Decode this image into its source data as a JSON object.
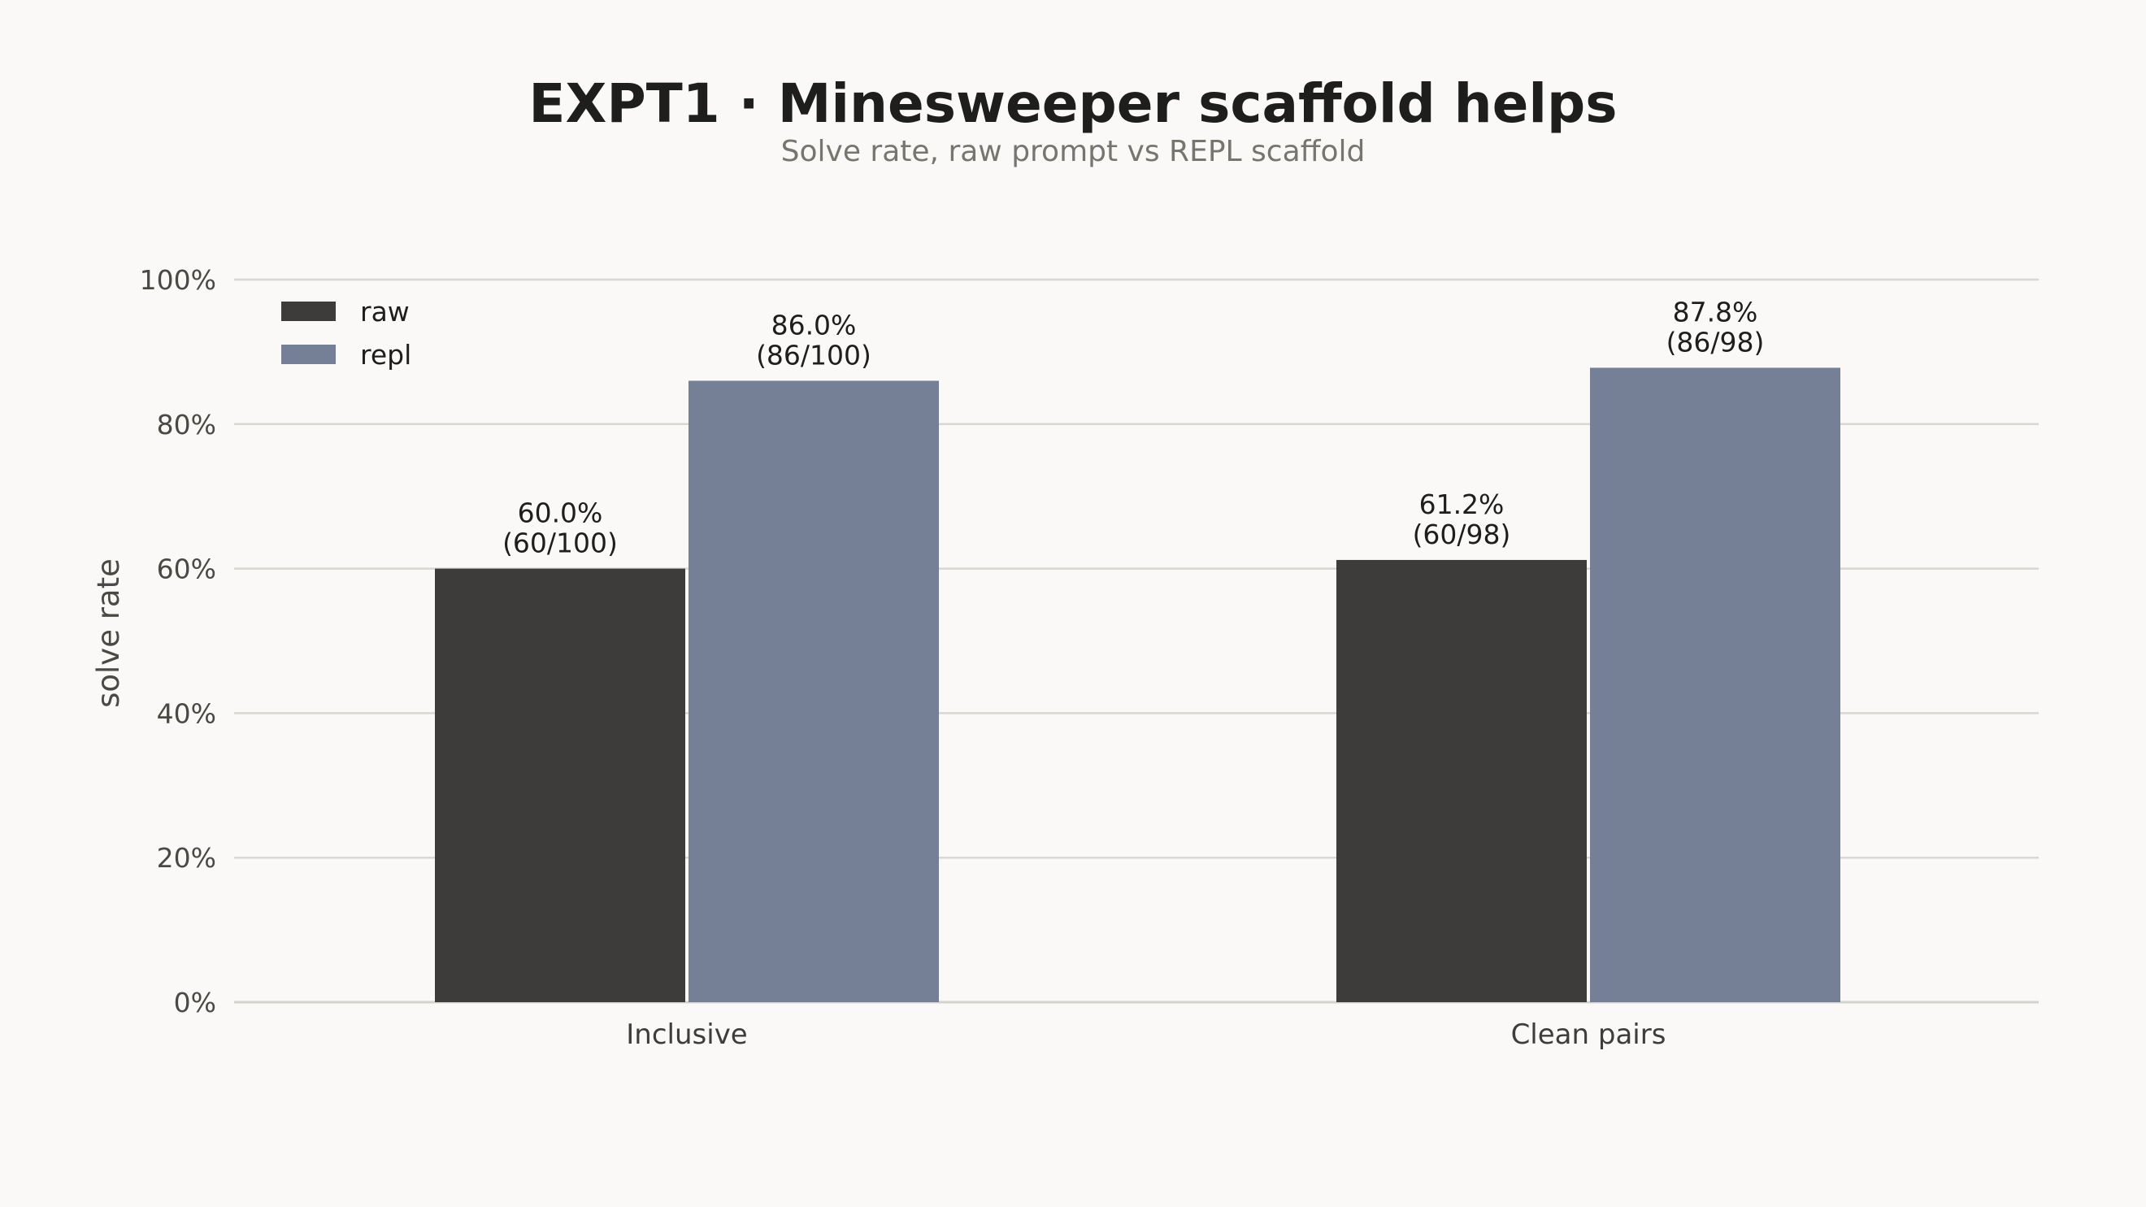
{
  "chart_data": {
    "type": "bar",
    "title": "EXPT1 · Minesweeper scaffold helps",
    "subtitle": "Solve rate, raw prompt vs REPL scaffold",
    "xlabel": "",
    "ylabel": "solve rate",
    "ylim": [
      0,
      1
    ],
    "yticks": [
      0,
      0.2,
      0.4,
      0.6,
      0.8,
      1.0
    ],
    "ytick_labels": [
      "0%",
      "20%",
      "40%",
      "60%",
      "80%",
      "100%"
    ],
    "grid": true,
    "legend_position": "top-left",
    "categories": [
      "Inclusive",
      "Clean pairs"
    ],
    "series": [
      {
        "name": "raw",
        "color": "#3d3c3a",
        "values": [
          0.6,
          0.612
        ],
        "labels": [
          "60.0%\n(60/100)",
          "61.2%\n(60/98)"
        ]
      },
      {
        "name": "repl",
        "color": "#758096",
        "values": [
          0.86,
          0.878
        ],
        "labels": [
          "86.0%\n(86/100)",
          "87.8%\n(86/98)"
        ]
      }
    ]
  }
}
